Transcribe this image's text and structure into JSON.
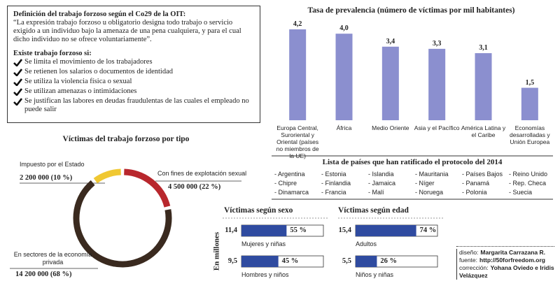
{
  "definition": {
    "title": "Definición del trabajo forzoso según el Co29 de la OIT:",
    "text": "“La expresión trabajo forzoso u obligatorio  designa todo trabajo o servicio exigido a un individuo bajo la amenaza de una pena cualquiera, y para el cual dicho individuo no se ofrece voluntariamente”."
  },
  "criteria": {
    "title": "Existe trabajo forzoso si:",
    "items": [
      "Se limita el movimiento de los trabajadores",
      "Se retienen los salarios o documentos de identidad",
      "Se utiliza la violencia física o sexual",
      "Se utilizan amenazas o intimidaciones",
      "Se justifican las labores en deudas fraudulentas de las cuales el empleado no puede salir"
    ]
  },
  "chart_data": [
    {
      "type": "bar",
      "title": "Tasa de prevalencia (número de víctimas por mil habitantes)",
      "categories": [
        "Europa Central, Suroriental y Oriental (países no miembros de la UE)",
        "África",
        "Medio Oriente",
        "Asia y el Pacífico",
        "América Latina y el Caribe",
        "Economías desarrolladas y Unión Europea"
      ],
      "values": [
        4.2,
        4.0,
        3.4,
        3.3,
        3.1,
        1.5
      ],
      "value_labels": [
        "4,2",
        "4,0",
        "3,4",
        "3,3",
        "3,1",
        "1,5"
      ],
      "color": "#8b8fcf"
    },
    {
      "type": "donut",
      "title": "Víctimas del trabajo forzoso por tipo",
      "categories": [
        "Con fines de explotación sexual",
        "En sectores de la economía privada",
        "Impuesto por el Estado"
      ],
      "values": [
        4500000,
        14200000,
        2200000
      ],
      "value_labels": [
        "4 500 000 (22 %)",
        "14 200 000 (68 %)",
        "2 200 000 (10 %)"
      ],
      "colors": [
        "#b8272d",
        "#3a2a1f",
        "#f0c832"
      ]
    },
    {
      "type": "hbar",
      "title": "Víctimas según sexo",
      "y_label": "En millones",
      "categories": [
        "Mujeres y niñas",
        "Hombres y niños"
      ],
      "values": [
        55,
        45
      ],
      "value_labels": [
        "55 %",
        "45 %"
      ],
      "amounts": [
        11.4,
        9.5
      ],
      "amount_labels": [
        "11,4",
        "9,5"
      ],
      "xlim": [
        0,
        100
      ],
      "color": "#2f4ba0"
    },
    {
      "type": "hbar",
      "title": "Víctimas según edad",
      "categories": [
        "Adultos",
        "Niños y niñas"
      ],
      "values": [
        74,
        26
      ],
      "value_labels": [
        "74 %",
        "26 %"
      ],
      "amounts": [
        15.4,
        5.5
      ],
      "amount_labels": [
        "15,4",
        "5,5"
      ],
      "xlim": [
        0,
        100
      ],
      "color": "#2f4ba0"
    }
  ],
  "countries": {
    "title": "Lista de países que han ratificado el protocolo del 2014",
    "columns": [
      [
        "- Argentina",
        "- Chipre",
        "- Dinamarca"
      ],
      [
        "- Estonia",
        "- Finlandia",
        "- Francia"
      ],
      [
        "- Islandia",
        "- Jamaica",
        "- Malí"
      ],
      [
        "- Mauritania",
        "- Níger",
        "- Noruega"
      ],
      [
        "- Países Bajos",
        "- Panamá",
        "- Polonia"
      ],
      [
        "- Reino Unido",
        "- Rep. Checa",
        "- Suecia"
      ]
    ]
  },
  "credits": [
    {
      "label": "diseño:",
      "value": "Margarita Carrazana R."
    },
    {
      "label": "fuente:",
      "value": "http://50forfreedom.org"
    },
    {
      "label": "corrección:",
      "value": "Yohana Oviedo e Iridis Velázquez"
    }
  ]
}
